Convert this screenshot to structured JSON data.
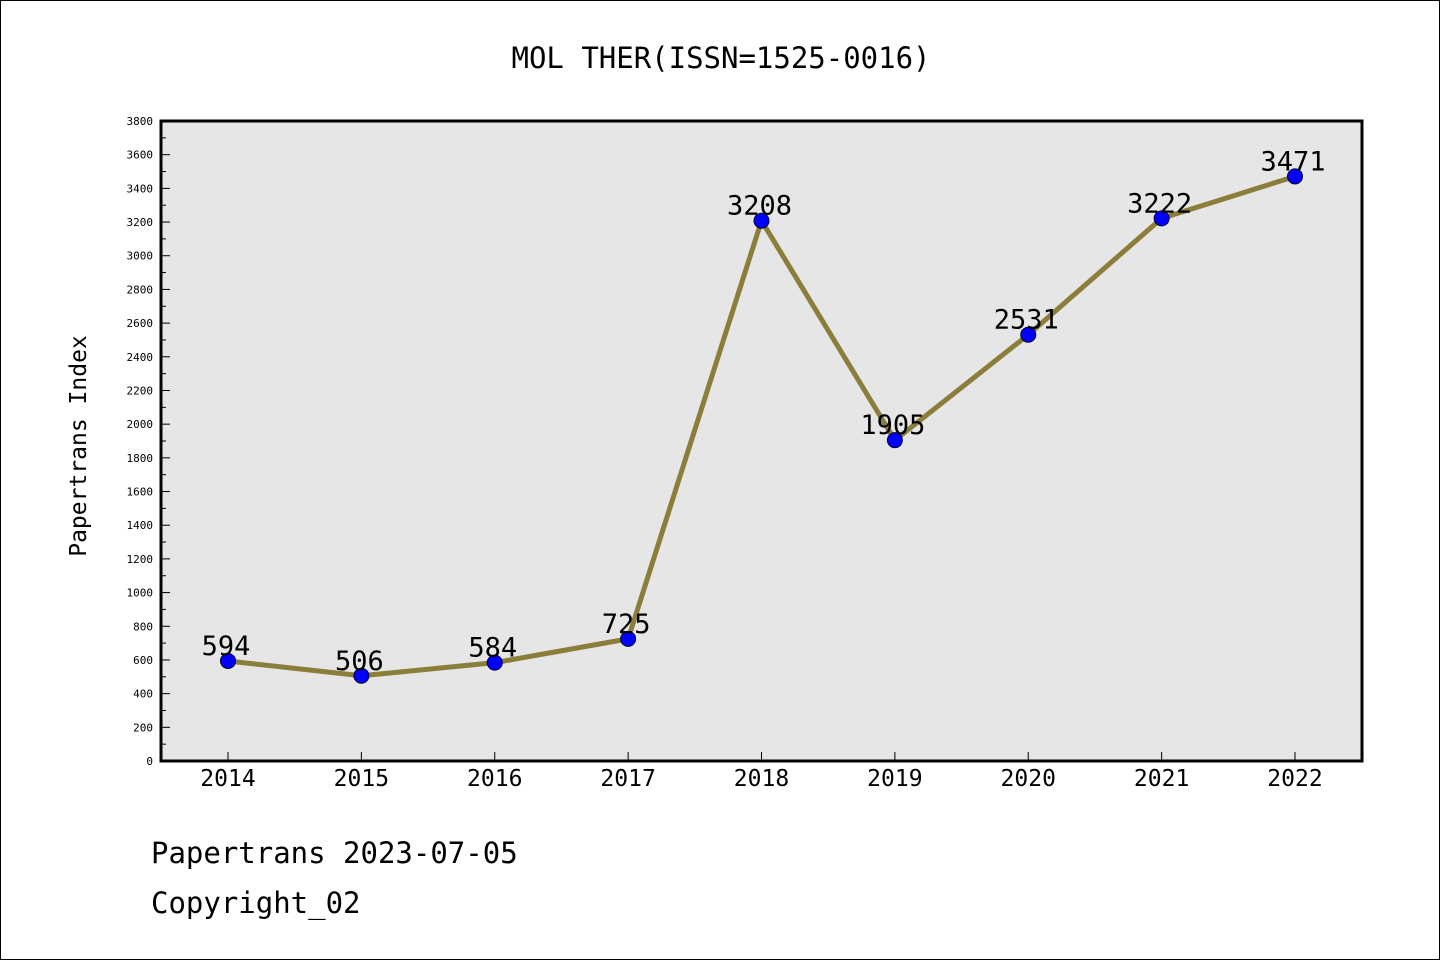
{
  "chart_data": {
    "type": "line",
    "title": "MOL THER(ISSN=1525-0016)",
    "xlabel": "",
    "ylabel": "Papertrans Index",
    "categories": [
      "2014",
      "2015",
      "2016",
      "2017",
      "2018",
      "2019",
      "2020",
      "2021",
      "2022"
    ],
    "series": [
      {
        "values": [
          594,
          506,
          584,
          725,
          3208,
          1905,
          2531,
          3222,
          3471
        ]
      }
    ],
    "ylim": [
      0,
      3800
    ],
    "yticks": [
      0,
      200,
      400,
      600,
      800,
      1000,
      1200,
      1400,
      1600,
      1800,
      2000,
      2200,
      2400,
      2600,
      2800,
      3000,
      3200,
      3400,
      3600,
      3800
    ],
    "grid": false,
    "data_labels": true,
    "colors": {
      "line": "#8B7D3A",
      "marker": "#0000FF",
      "plot_background": "#E6E6E6"
    }
  },
  "footer": {
    "line1": "Papertrans 2023-07-05",
    "line2": "Copyright_02"
  }
}
